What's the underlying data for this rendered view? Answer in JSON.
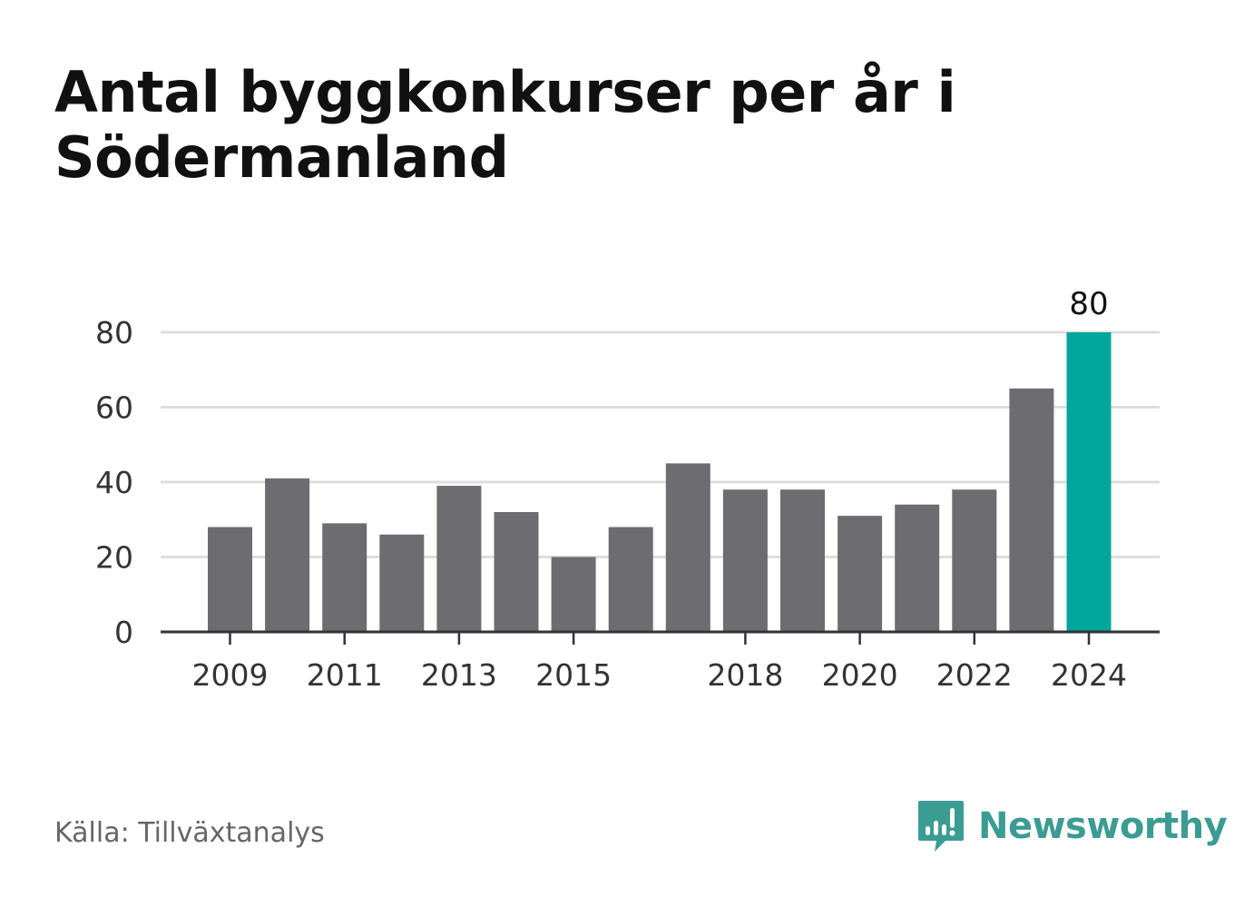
{
  "title": "Antal byggkonkurser per år i Södermanland",
  "source": "Källa: Tillväxtanalys",
  "brand": {
    "name": "Newsworthy",
    "icon": "newsworthy-logo-icon",
    "color": "#3a9c93"
  },
  "chart_data": {
    "type": "bar",
    "title": "Antal byggkonkurser per år i Södermanland",
    "xlabel": "",
    "ylabel": "",
    "categories": [
      "2009",
      "2010",
      "2011",
      "2012",
      "2013",
      "2014",
      "2015",
      "2016",
      "2017",
      "2018",
      "2019",
      "2020",
      "2021",
      "2022",
      "2023",
      "2024"
    ],
    "values": [
      28,
      41,
      29,
      26,
      39,
      32,
      20,
      28,
      45,
      38,
      38,
      31,
      34,
      38,
      65,
      80
    ],
    "x_tick_labels": [
      "2009",
      "2011",
      "2013",
      "2015",
      "2018",
      "2020",
      "2022",
      "2024"
    ],
    "y_ticks": [
      0,
      20,
      40,
      60,
      80
    ],
    "ylim": [
      0,
      80
    ],
    "grid": true,
    "bar_color": "#6d6c71",
    "highlight_color": "#00a69b",
    "highlight_category": "2024",
    "data_labels": [
      {
        "category": "2024",
        "text": "80"
      }
    ]
  }
}
